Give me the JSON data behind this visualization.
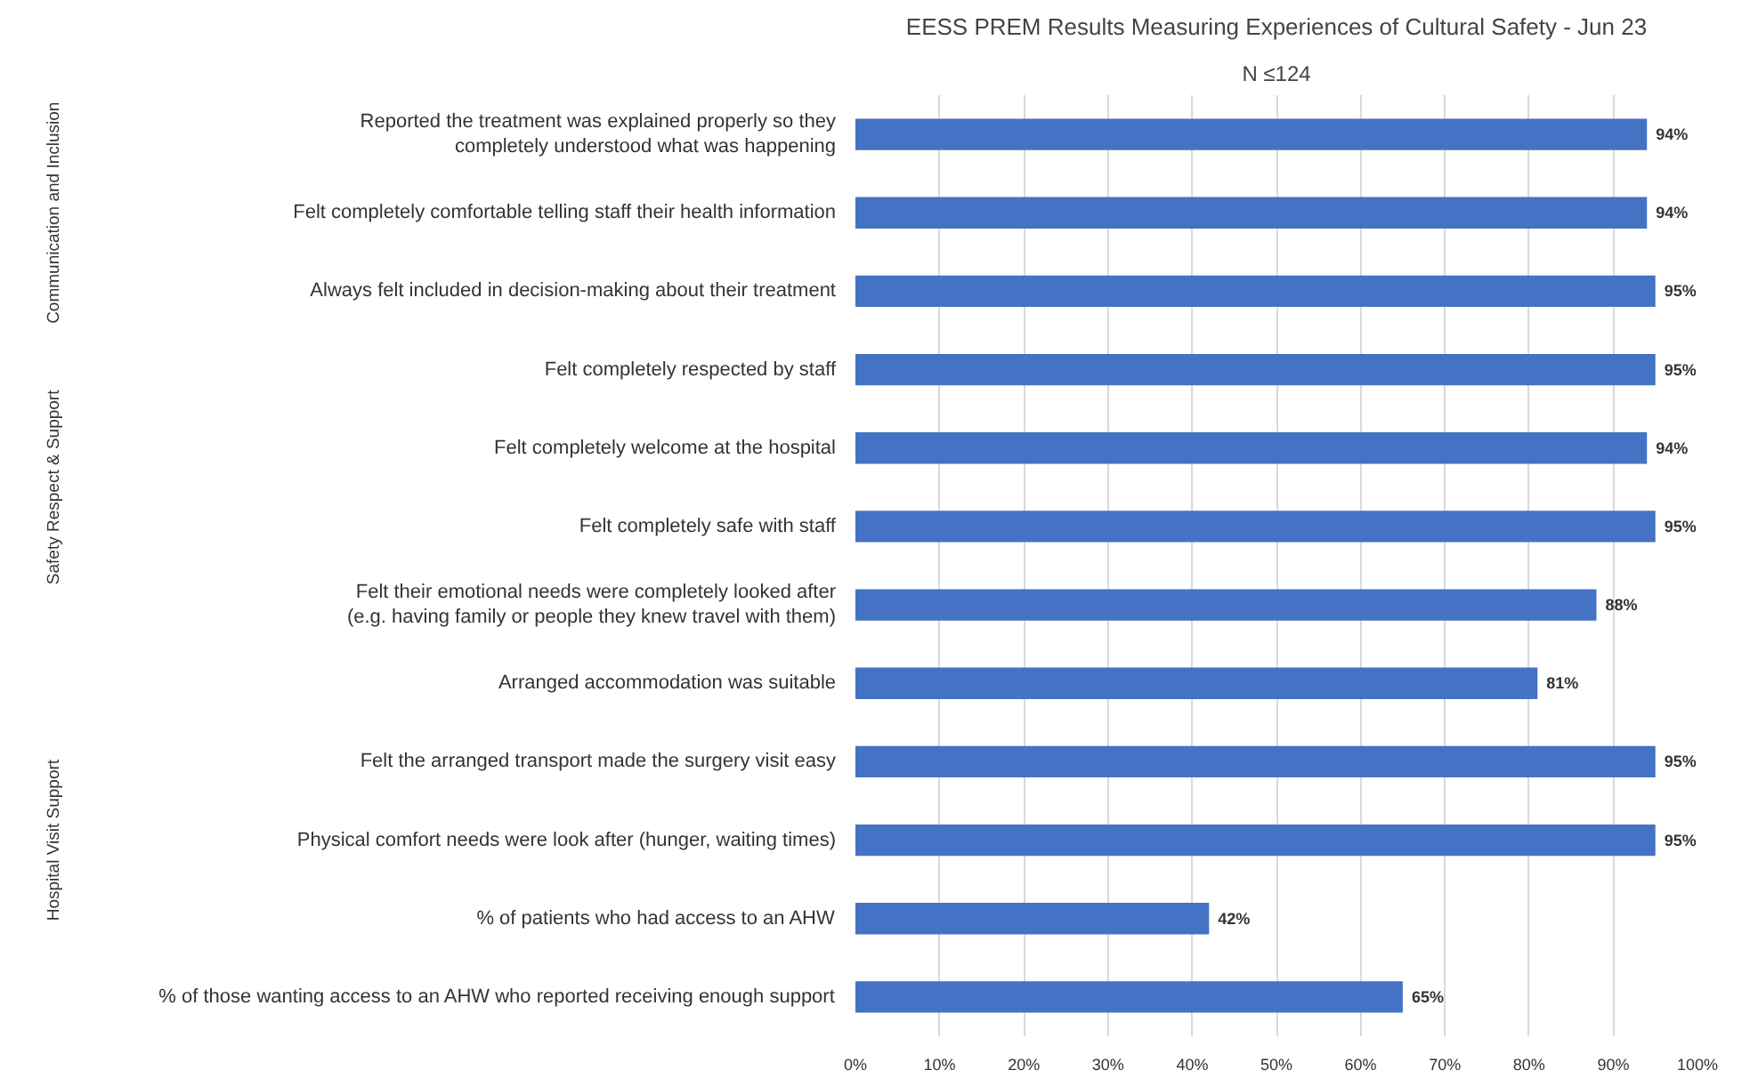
{
  "chart_data": {
    "type": "bar",
    "orientation": "horizontal",
    "title": "EESS PREM Results Measuring Experiences of Cultural Safety - Jun 23",
    "subtitle": "N ≤124",
    "categories": [
      "Reported the treatment was explained properly so they\ncompletely understood what was happening",
      "Felt completely comfortable telling staff their health information",
      "Always felt included in decision-making about their treatment",
      "Felt completely respected by staff",
      "Felt completely welcome at the hospital",
      "Felt completely safe with staff",
      "Felt their emotional needs were completely looked after\n(e.g. having family or people they knew travel with them)",
      "Arranged accommodation was suitable",
      "Felt the arranged transport made the surgery visit easy",
      "Physical comfort needs were look after (hunger, waiting times)",
      "% of patients who had access to an AHW",
      "% of those wanting access to an AHW who reported receiving enough support"
    ],
    "values": [
      94,
      94,
      95,
      95,
      94,
      95,
      88,
      81,
      95,
      95,
      42,
      65
    ],
    "value_labels": [
      "94%",
      "94%",
      "95%",
      "95%",
      "94%",
      "95%",
      "88%",
      "81%",
      "95%",
      "95%",
      "42%",
      "65%"
    ],
    "color": "#4472c4",
    "xlim": [
      0,
      100
    ],
    "xticks": [
      {
        "value": 0,
        "label": "0%"
      },
      {
        "value": 10,
        "label": "10%"
      },
      {
        "value": 20,
        "label": "20%"
      },
      {
        "value": 30,
        "label": "30%"
      },
      {
        "value": 40,
        "label": "40%"
      },
      {
        "value": 50,
        "label": "50%"
      },
      {
        "value": 60,
        "label": "60%"
      },
      {
        "value": 70,
        "label": "70%"
      },
      {
        "value": 80,
        "label": "80%"
      },
      {
        "value": 90,
        "label": "90%"
      },
      {
        "value": 100,
        "label": "100%"
      }
    ],
    "grid": "x",
    "annotations": [
      "Communication and Inclusion",
      "Safety Respect & Support",
      "Hospital Visit Support"
    ]
  }
}
